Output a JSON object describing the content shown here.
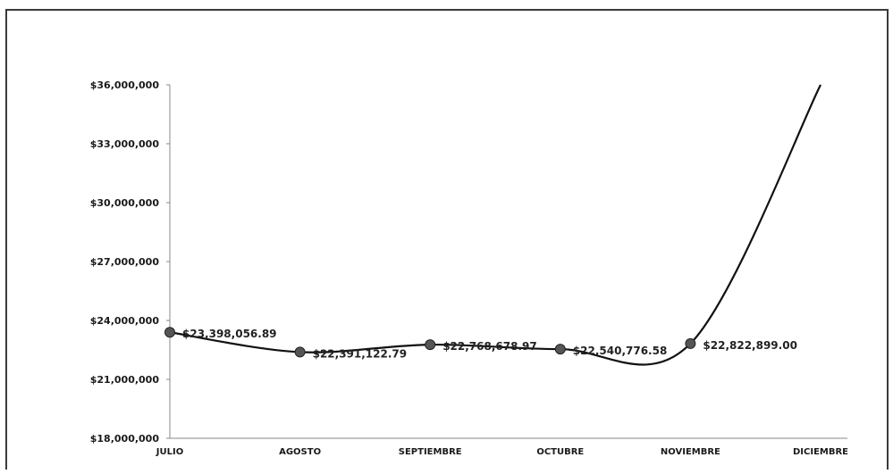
{
  "chart_data": {
    "type": "line",
    "categories": [
      "JULIO",
      "AGOSTO",
      "SEPTIEMBRE",
      "OCTUBRE",
      "NOVIEMBRE",
      "DICIEMBRE"
    ],
    "series": [
      {
        "values": [
          23398056.89,
          22391122.79,
          22768678.97,
          22540776.58,
          22822899.0,
          36000000
        ],
        "labels": [
          "$23,398,056.89",
          "$22,391,122.79",
          "$22,768,678.97",
          "$22,540,776.58",
          "$22,822,899.00",
          null
        ],
        "markers": [
          true,
          true,
          true,
          true,
          true,
          false
        ]
      }
    ],
    "y_ticks": [
      "$18,000,000",
      "$21,000,000",
      "$24,000,000",
      "$27,000,000",
      "$30,000,000",
      "$33,000,000",
      "$36,000,000"
    ],
    "ylim": [
      18000000,
      36000000
    ],
    "y_step": 3000000,
    "grid": false,
    "colors": {
      "line": "#111111",
      "marker": "#555555",
      "axis": "#888888"
    }
  }
}
